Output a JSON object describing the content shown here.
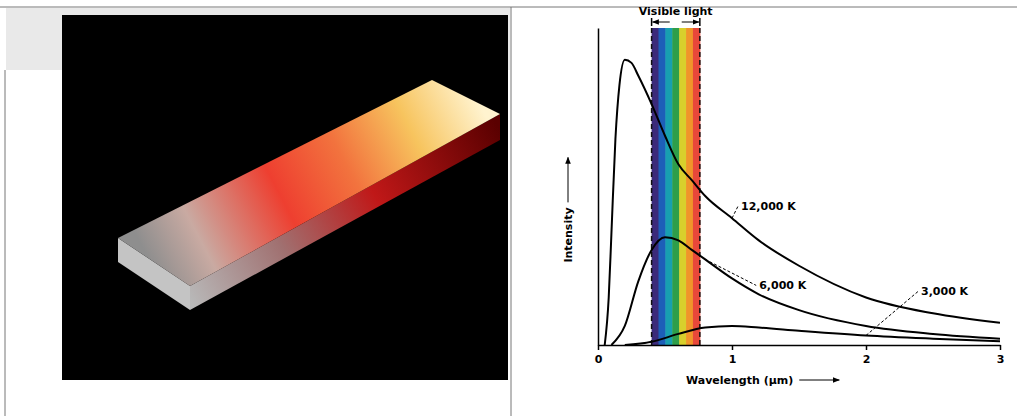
{
  "chart_data": {
    "type": "line",
    "x_label": "Wavelength (µm)",
    "y_label": "Intensity",
    "xlim": [
      0,
      3
    ],
    "xticks": [
      0,
      1,
      2,
      3
    ],
    "ylim": [
      0,
      100
    ],
    "tick_labels": "x",
    "grid": false,
    "visible_band": {
      "label": "Visible light",
      "range": [
        0.4,
        0.76
      ],
      "colors": [
        "#3b2a7a",
        "#1d5fb8",
        "#17a0b0",
        "#2e9e4a",
        "#d8d02c",
        "#f0952a",
        "#e8483a"
      ]
    },
    "series": [
      {
        "name": "12,000 K",
        "color": "#000000",
        "x": [
          0.05,
          0.08,
          0.1,
          0.13,
          0.16,
          0.2,
          0.25,
          0.3,
          0.4,
          0.5,
          0.6,
          0.7,
          0.8,
          1.0,
          1.2,
          1.5,
          2.0,
          2.5,
          3.0
        ],
        "values": [
          0,
          15,
          35,
          65,
          82,
          90,
          89,
          85,
          76,
          66,
          57,
          52,
          47,
          40,
          33,
          25,
          15,
          10,
          7
        ]
      },
      {
        "name": "6,000 K",
        "color": "#000000",
        "x": [
          0.1,
          0.2,
          0.3,
          0.4,
          0.5,
          0.6,
          0.7,
          0.8,
          1.0,
          1.2,
          1.5,
          2.0,
          2.5,
          3.0
        ],
        "values": [
          0,
          6,
          20,
          30,
          34,
          33,
          30,
          27,
          21,
          16,
          11,
          6,
          3.5,
          2
        ]
      },
      {
        "name": "3,000 K",
        "color": "#000000",
        "x": [
          0.2,
          0.4,
          0.6,
          0.8,
          1.0,
          1.2,
          1.5,
          2.0,
          2.5,
          3.0
        ],
        "values": [
          0,
          1,
          3.5,
          5.5,
          6,
          5.5,
          4.5,
          3,
          2,
          1.2
        ]
      }
    ]
  }
}
